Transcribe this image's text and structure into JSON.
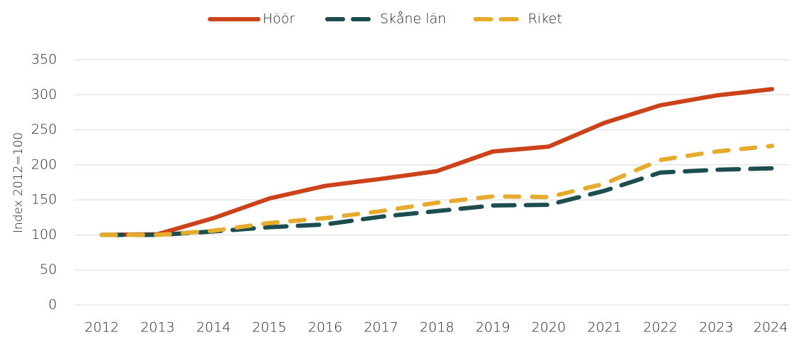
{
  "chart_data": {
    "type": "line",
    "y_label": "Index 2012=100",
    "categories": [
      "2012",
      "2013",
      "2014",
      "2015",
      "2016",
      "2017",
      "2018",
      "2019",
      "2020",
      "2021",
      "2022",
      "2023",
      "2024"
    ],
    "series": [
      {
        "name": "Höör",
        "color": "#cc421a",
        "line_style": "solid",
        "values": [
          100,
          101,
          124,
          152,
          170,
          180,
          191,
          219,
          226,
          260,
          285,
          299,
          308
        ]
      },
      {
        "name": "Skåne län",
        "color": "#1c4d4f",
        "line_style": "dashed",
        "values": [
          100,
          100,
          105,
          111,
          115,
          126,
          134,
          142,
          143,
          163,
          189,
          193,
          195
        ]
      },
      {
        "name": "Riket",
        "color": "#e6aa2c",
        "line_style": "dashed",
        "values": [
          100,
          100,
          106,
          117,
          124,
          134,
          146,
          155,
          154,
          173,
          207,
          219,
          227
        ]
      }
    ],
    "ylim": [
      0,
      350
    ],
    "yticks": [
      0,
      50,
      100,
      150,
      200,
      250,
      300,
      350
    ],
    "grid": true,
    "legend": "top"
  }
}
